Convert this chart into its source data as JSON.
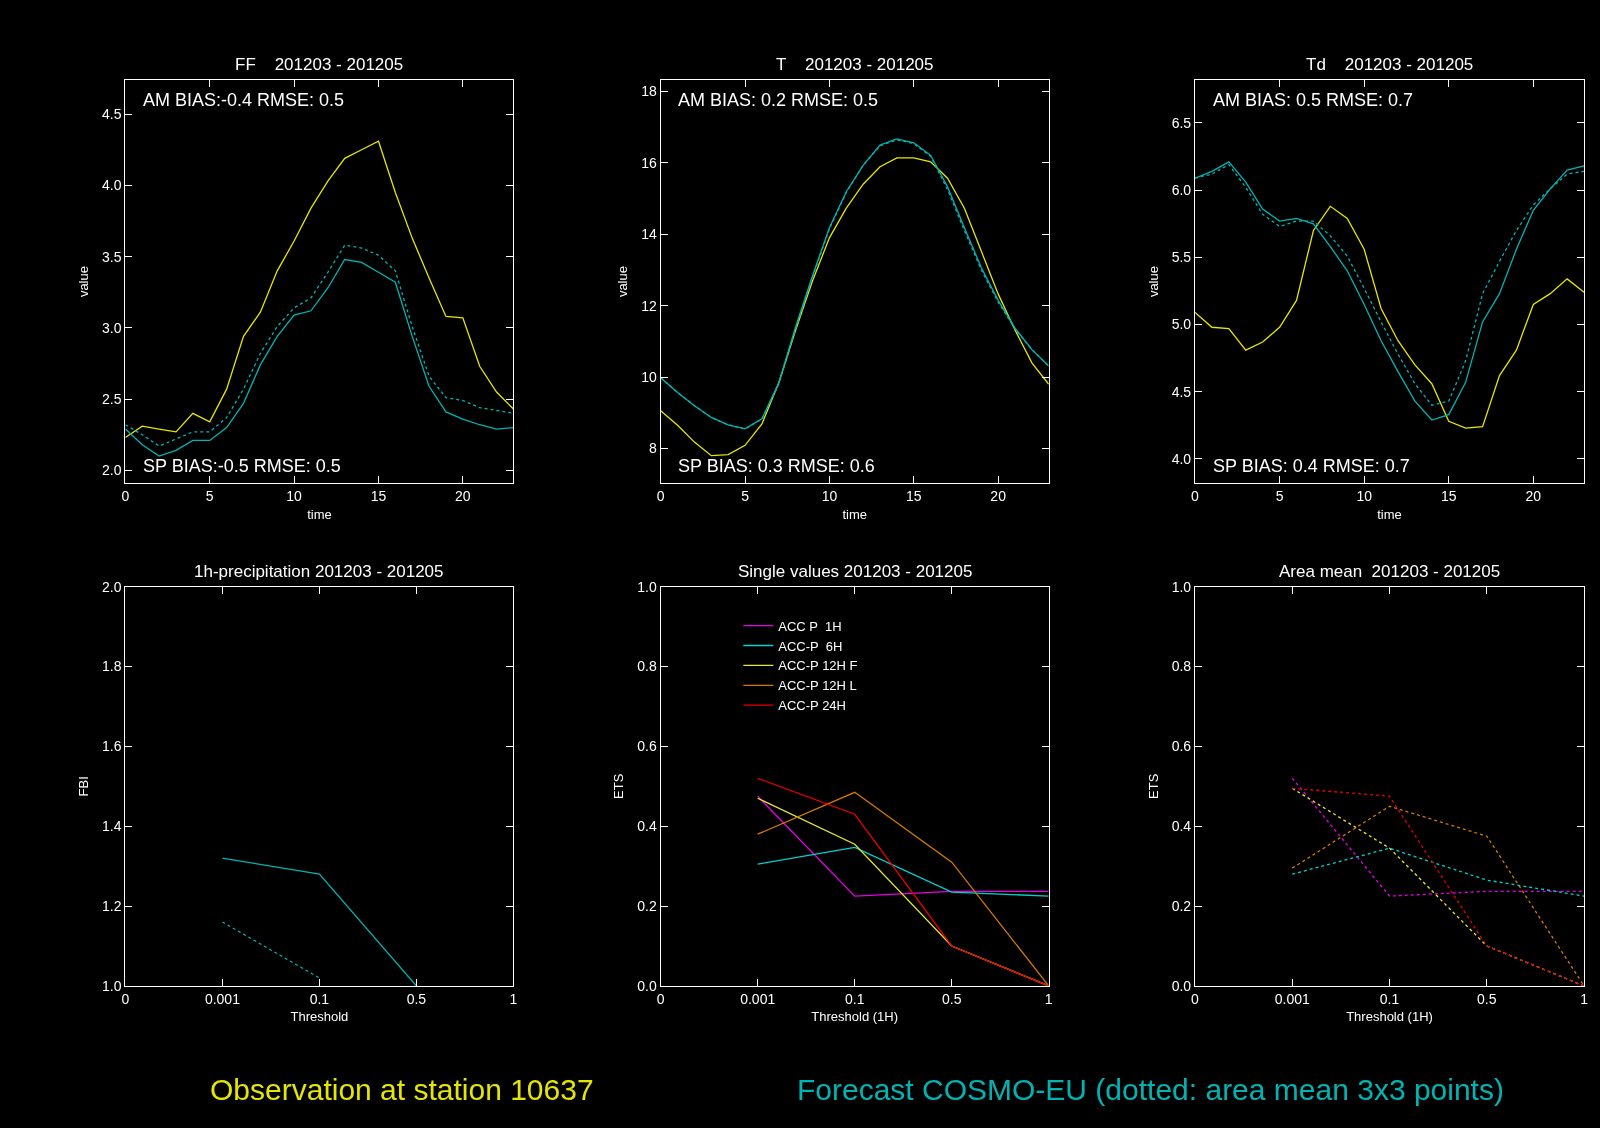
{
  "chart_data": [
    {
      "type": "line",
      "title": "FF    201203 - 201205",
      "xlabel": "time",
      "ylabel": "value",
      "annotations": [
        "AM BIAS:-0.4 RMSE: 0.5",
        "SP BIAS:-0.5 RMSE: 0.5",
        "Observation at station 10637",
        "Forecast COSMO-EU (dotted: area mean 3x3 points)"
      ],
      "x": [
        0,
        1,
        2,
        3,
        4,
        5,
        6,
        7,
        8,
        9,
        10,
        11,
        12,
        13,
        14,
        15,
        16,
        17,
        18,
        19,
        20,
        21,
        22,
        23
      ],
      "series": [
        {
          "color": "#e6e600",
          "line_style": "solid",
          "values": [
            2.23,
            2.31,
            2.29,
            2.27,
            2.4,
            2.34,
            2.57,
            2.94,
            3.11,
            3.4,
            3.61,
            3.84,
            4.03,
            4.19,
            4.25,
            4.31,
            3.95,
            3.63,
            3.35,
            3.08,
            3.07,
            2.73,
            2.55,
            2.43
          ]
        },
        {
          "color": "#00b4b4",
          "line_style": "solid",
          "values": [
            2.29,
            2.18,
            2.1,
            2.14,
            2.21,
            2.21,
            2.3,
            2.47,
            2.74,
            2.94,
            3.09,
            3.12,
            3.28,
            3.48,
            3.46,
            3.39,
            3.32,
            2.94,
            2.59,
            2.41,
            2.36,
            2.32,
            2.29,
            2.3
          ]
        },
        {
          "color": "#00b4b4",
          "line_style": "dotted",
          "values": [
            2.32,
            2.25,
            2.17,
            2.22,
            2.27,
            2.27,
            2.37,
            2.57,
            2.82,
            3.01,
            3.14,
            3.21,
            3.39,
            3.58,
            3.56,
            3.51,
            3.4,
            3.01,
            2.66,
            2.51,
            2.49,
            2.44,
            2.42,
            2.4
          ]
        }
      ],
      "xlim": [
        0,
        23
      ],
      "xticks": [
        0,
        5,
        10,
        15,
        20
      ],
      "ylim": [
        1.91,
        4.74
      ],
      "yticks": [
        {
          "value": 2,
          "label": "2.0"
        },
        2.5,
        {
          "value": 3,
          "label": "3.0"
        },
        3.5,
        {
          "value": 4,
          "label": "4.0"
        },
        4.5
      ]
    },
    {
      "type": "line",
      "title": "T    201203 - 201205",
      "xlabel": "time",
      "ylabel": "value",
      "annotations": [
        "AM BIAS: 0.2 RMSE: 0.5",
        "SP BIAS: 0.3 RMSE: 0.6"
      ],
      "x": [
        0,
        1,
        2,
        3,
        4,
        5,
        6,
        7,
        8,
        9,
        10,
        11,
        12,
        13,
        14,
        15,
        16,
        17,
        18,
        19,
        20,
        21,
        22,
        23
      ],
      "series": [
        {
          "color": "#e6e600",
          "line_style": "solid",
          "values": [
            9.06,
            8.65,
            8.18,
            7.8,
            7.83,
            8.09,
            8.69,
            9.84,
            11.32,
            12.7,
            13.9,
            14.73,
            15.4,
            15.89,
            16.14,
            16.14,
            16.03,
            15.57,
            14.73,
            13.53,
            12.33,
            11.32,
            10.4,
            9.8
          ]
        },
        {
          "color": "#00b4b4",
          "line_style": "solid",
          "values": [
            9.98,
            9.57,
            9.2,
            8.87,
            8.66,
            8.55,
            8.83,
            9.84,
            11.41,
            12.84,
            14.18,
            15.19,
            15.93,
            16.5,
            16.67,
            16.56,
            16.21,
            15.33,
            14.18,
            13.07,
            12.15,
            11.37,
            10.77,
            10.31
          ]
        },
        {
          "color": "#00b4b4",
          "line_style": "dotted",
          "values": [
            9.98,
            9.57,
            9.2,
            8.87,
            8.66,
            8.55,
            8.83,
            9.8,
            11.35,
            12.8,
            14.15,
            15.17,
            15.93,
            16.48,
            16.64,
            16.54,
            16.18,
            15.25,
            14.1,
            13.0,
            12.1,
            11.35,
            10.77,
            10.31
          ]
        }
      ],
      "xlim": [
        0,
        23
      ],
      "xticks": [
        0,
        5,
        10,
        15,
        20
      ],
      "ylim": [
        7.03,
        18.32
      ],
      "yticks": [
        8,
        10,
        12,
        14,
        16,
        18
      ]
    },
    {
      "type": "line",
      "title": "Td    201203 - 201205",
      "xlabel": "time",
      "ylabel": "value",
      "annotations": [
        "AM BIAS: 0.5 RMSE: 0.7",
        "SP BIAS: 0.4 RMSE: 0.7"
      ],
      "x": [
        0,
        1,
        2,
        3,
        4,
        5,
        6,
        7,
        8,
        9,
        10,
        11,
        12,
        13,
        14,
        15,
        16,
        17,
        18,
        19,
        20,
        21,
        22,
        23
      ],
      "series": [
        {
          "color": "#e6e600",
          "line_style": "solid",
          "values": [
            5.09,
            4.98,
            4.97,
            4.81,
            4.87,
            4.98,
            5.18,
            5.7,
            5.88,
            5.79,
            5.56,
            5.12,
            4.88,
            4.7,
            4.56,
            4.28,
            4.23,
            4.24,
            4.62,
            4.81,
            5.15,
            5.23,
            5.34,
            5.24
          ]
        },
        {
          "color": "#00b4b4",
          "line_style": "solid",
          "values": [
            6.09,
            6.14,
            6.21,
            6.06,
            5.86,
            5.77,
            5.79,
            5.75,
            5.58,
            5.4,
            5.15,
            4.88,
            4.65,
            4.43,
            4.29,
            4.33,
            4.57,
            5.02,
            5.23,
            5.56,
            5.85,
            6.01,
            6.15,
            6.18
          ]
        },
        {
          "color": "#00b4b4",
          "line_style": "dotted",
          "values": [
            6.09,
            6.12,
            6.19,
            6.02,
            5.82,
            5.73,
            5.77,
            5.77,
            5.66,
            5.51,
            5.27,
            5.02,
            4.78,
            4.56,
            4.4,
            4.43,
            4.73,
            5.23,
            5.47,
            5.7,
            5.89,
            6.01,
            6.12,
            6.14
          ]
        }
      ],
      "xlim": [
        0,
        23
      ],
      "xticks": [
        0,
        5,
        10,
        15,
        20
      ],
      "ylim": [
        3.82,
        6.82
      ],
      "yticks": [
        {
          "value": 4,
          "label": "4.0"
        },
        4.5,
        {
          "value": 5,
          "label": "5.0"
        },
        5.5,
        {
          "value": 6,
          "label": "6.0"
        },
        6.5
      ]
    },
    {
      "type": "line",
      "title": "1h-precipitation 201203 - 201205",
      "xlabel": "Threshold",
      "ylabel": "FBI",
      "categories": [
        "0",
        "0.001",
        "0.1",
        "0.5",
        "1"
      ],
      "series": [
        {
          "color": "#00b4b4",
          "line_style": "solid",
          "values": [
            null,
            1.32,
            1.28,
            1.0,
            null
          ]
        },
        {
          "color": "#00b4b4",
          "line_style": "dotted",
          "values": [
            null,
            1.16,
            1.02,
            null,
            null
          ]
        }
      ],
      "ylim": [
        1.0,
        2.0
      ],
      "yticks": [
        {
          "value": 1,
          "label": "1.0"
        },
        1.2,
        1.4,
        1.6,
        1.8,
        {
          "value": 2,
          "label": "2.0"
        }
      ]
    },
    {
      "type": "line",
      "title": "Single values 201203 - 201205",
      "xlabel": "Threshold (1H)",
      "ylabel": "ETS",
      "legend": "top left",
      "categories": [
        "0",
        "0.001",
        "0.1",
        "0.5",
        "1"
      ],
      "series": [
        {
          "name": "ACC P  1H",
          "color": "#e600e6",
          "line_style": "solid",
          "values": [
            null,
            0.475,
            0.225,
            0.237,
            0.237
          ]
        },
        {
          "name": "ACC-P  6H",
          "color": "#00d2d2",
          "line_style": "solid",
          "values": [
            null,
            0.305,
            0.347,
            0.235,
            0.225
          ]
        },
        {
          "name": "ACC-P 12H F",
          "color": "#e6e632",
          "line_style": "solid",
          "values": [
            null,
            0.47,
            0.355,
            0.1,
            0.0
          ]
        },
        {
          "name": "ACC-P 12H L",
          "color": "#d27800",
          "line_style": "solid",
          "values": [
            null,
            0.38,
            0.485,
            0.31,
            0.0
          ]
        },
        {
          "name": "ACC-P 24H",
          "color": "#e60000",
          "line_style": "solid",
          "values": [
            null,
            0.52,
            0.43,
            0.1,
            0.0
          ]
        }
      ],
      "ylim": [
        0.0,
        1.0
      ],
      "yticks": [
        {
          "value": 0,
          "label": "0.0"
        },
        0.2,
        0.4,
        0.6,
        0.8,
        {
          "value": 1,
          "label": "1.0"
        }
      ]
    },
    {
      "type": "line",
      "title": "Area mean  201203 - 201205",
      "xlabel": "Threshold (1H)",
      "ylabel": "ETS",
      "categories": [
        "0",
        "0.001",
        "0.1",
        "0.5",
        "1"
      ],
      "series": [
        {
          "color": "#e600e6",
          "line_style": "dotted",
          "values": [
            null,
            0.52,
            0.225,
            0.237,
            0.237
          ]
        },
        {
          "color": "#00d2d2",
          "line_style": "dotted",
          "values": [
            null,
            0.28,
            0.345,
            0.265,
            0.225
          ]
        },
        {
          "color": "#e6e632",
          "line_style": "dotted",
          "values": [
            null,
            0.495,
            0.345,
            0.1,
            0.0
          ]
        },
        {
          "color": "#d27800",
          "line_style": "dotted",
          "values": [
            null,
            0.295,
            0.45,
            0.375,
            0.0
          ]
        },
        {
          "color": "#e60000",
          "line_style": "dotted",
          "values": [
            null,
            0.495,
            0.475,
            0.1,
            0.0
          ]
        }
      ],
      "ylim": [
        0.0,
        1.0
      ],
      "yticks": [
        {
          "value": 0,
          "label": "0.0"
        },
        0.2,
        0.4,
        0.6,
        0.8,
        {
          "value": 1,
          "label": "1.0"
        }
      ]
    }
  ]
}
